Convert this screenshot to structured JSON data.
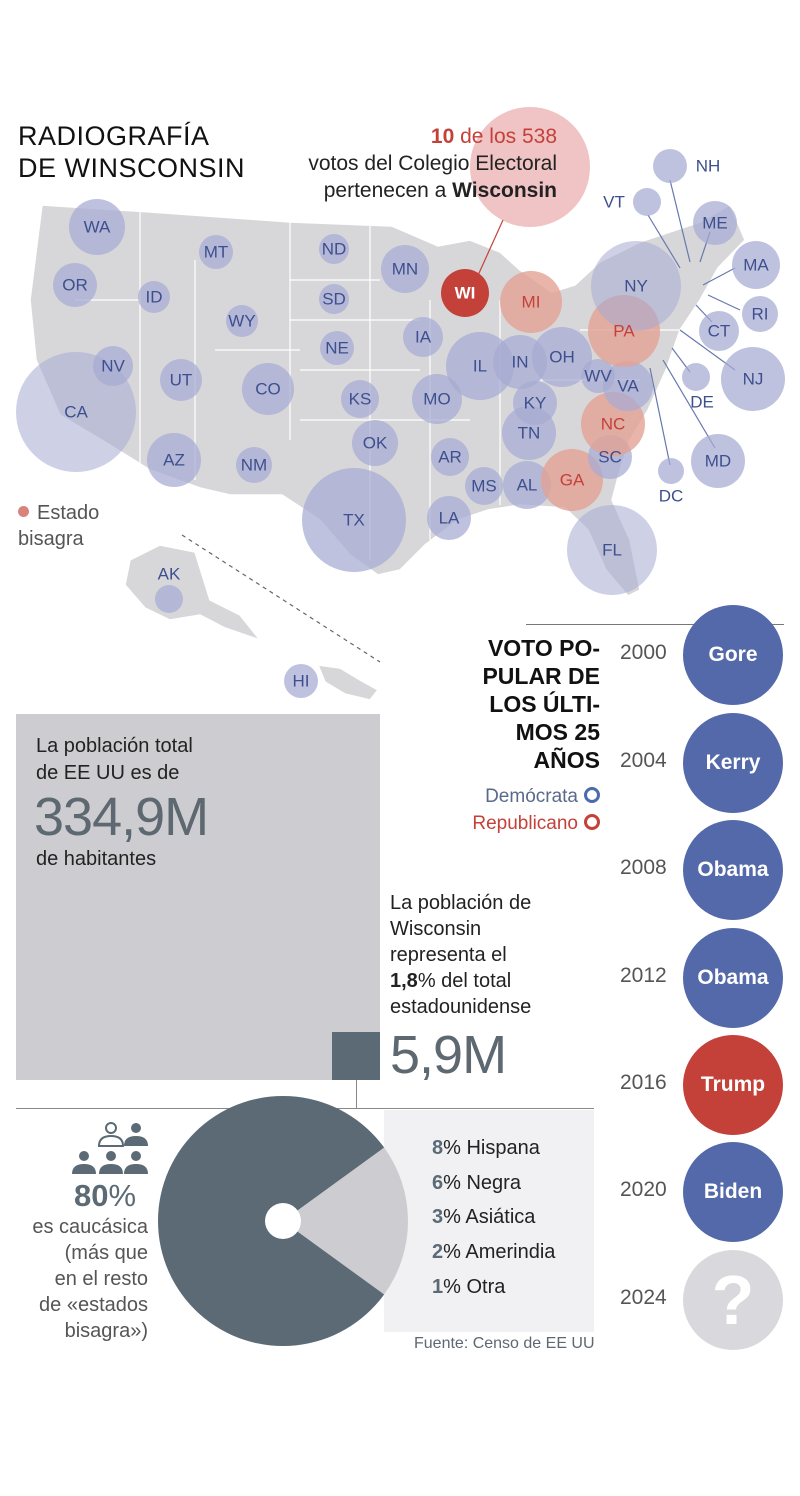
{
  "title": {
    "line1": "RADIOGRAFÍA",
    "line2": "DE WINSCONSIN"
  },
  "electoral": {
    "votes": "10",
    "of_total": " de los 538",
    "line2": "votos del Colegio Electoral",
    "line3_prefix": "pertenecen a ",
    "state": "Wisconsin"
  },
  "map": {
    "states": [
      "WA",
      "OR",
      "CA",
      "NV",
      "ID",
      "MT",
      "WY",
      "UT",
      "AZ",
      "CO",
      "NM",
      "ND",
      "SD",
      "NE",
      "KS",
      "OK",
      "TX",
      "MN",
      "IA",
      "MO",
      "AR",
      "LA",
      "WI",
      "IL",
      "MI",
      "IN",
      "OH",
      "KY",
      "TN",
      "MS",
      "AL",
      "GA",
      "FL",
      "SC",
      "NC",
      "VA",
      "WV",
      "PA",
      "NY",
      "VT",
      "NH",
      "ME",
      "MA",
      "RI",
      "CT",
      "NJ",
      "DE",
      "MD",
      "DC",
      "AK",
      "HI"
    ],
    "swing_states": [
      "WI",
      "MI",
      "PA",
      "NC",
      "GA"
    ],
    "colors": {
      "land": "#d7d7da",
      "bubble": "#a6abd2",
      "swing": "#e3a193",
      "wi": "#c4413a"
    }
  },
  "legend": {
    "swing_line1": "Estado",
    "swing_line2": "bisagra"
  },
  "vote": {
    "title_lines": [
      "VOTO PO-",
      "PULAR DE",
      "LOS ÚLTI-",
      "MOS 25",
      "AÑOS"
    ],
    "legend_dem": "Demócrata",
    "legend_rep": "Republicano",
    "results": [
      {
        "year": "2000",
        "winner": "Gore",
        "party": "dem"
      },
      {
        "year": "2004",
        "winner": "Kerry",
        "party": "dem"
      },
      {
        "year": "2008",
        "winner": "Obama",
        "party": "dem"
      },
      {
        "year": "2012",
        "winner": "Obama",
        "party": "dem"
      },
      {
        "year": "2016",
        "winner": "Trump",
        "party": "rep"
      },
      {
        "year": "2020",
        "winner": "Biden",
        "party": "dem"
      },
      {
        "year": "2024",
        "winner": "?",
        "party": "unknown"
      }
    ]
  },
  "population": {
    "us_text_line1": "La población total",
    "us_text_line2": "de EE UU es de",
    "us_value": "334,9M",
    "us_unit": "de habitantes",
    "wi_text_line1": "La población de",
    "wi_text_line2": "Wisconsin",
    "wi_text_line3": "representa el",
    "wi_share": "1,8",
    "wi_text_line4_suffix": "% del total",
    "wi_text_line5": "estadounidense",
    "wi_value": "5,9M"
  },
  "ethnicity": {
    "main_pct": "80",
    "pct_sign": "%",
    "main_text_lines": [
      "es caucásica",
      "(más que",
      "en el resto",
      "de «estados",
      "bisagra»)"
    ],
    "groups": [
      {
        "pct": "8",
        "label": "% Hispana"
      },
      {
        "pct": "6",
        "label": "% Negra"
      },
      {
        "pct": "3",
        "label": "% Asiática"
      },
      {
        "pct": "2",
        "label": "% Amerindia"
      },
      {
        "pct": "1",
        "label": "% Otra"
      }
    ],
    "pie": {
      "caucasian": 80,
      "other": 20
    },
    "source": "Fuente: Censo de EE UU"
  }
}
